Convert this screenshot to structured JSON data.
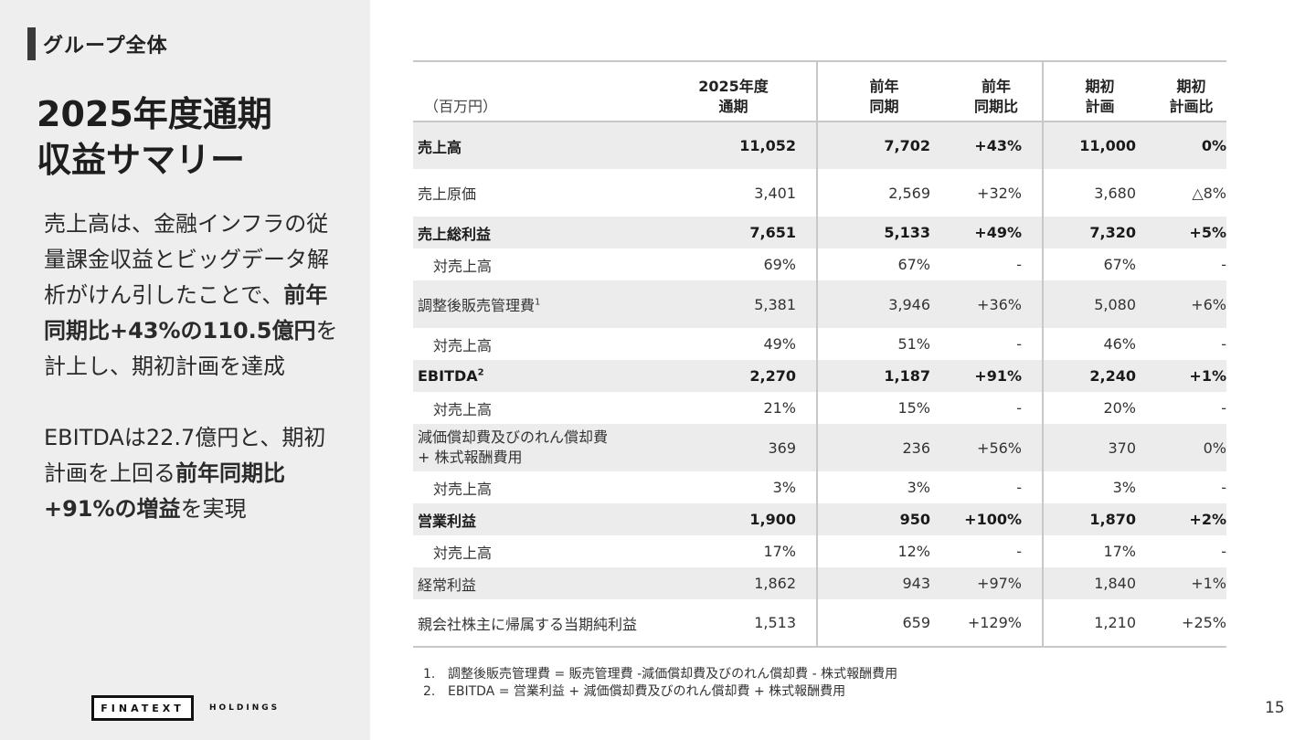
{
  "section_label": "グループ全体",
  "title": {
    "line1": "2025年度通期",
    "line2": "収益サマリー"
  },
  "summary": {
    "p1": {
      "t1": "売上高は、金融インフラの従量課金収益とビッグデータ解析がけん引したことで、",
      "b1": "前年同期比+43%の110.5億円",
      "t2": "を計上し、期初計画を達成"
    },
    "p2": {
      "t1": "EBITDAは22.7億円と、期初計画を上回る",
      "b1": "前年同期比+91%の増益",
      "t2": "を実現"
    }
  },
  "table": {
    "unit": "（百万円）",
    "headers": {
      "cur_l1": "2025年度",
      "cur_l2": "通期",
      "prev_l1": "前年",
      "prev_l2": "同期",
      "yoy_l1": "前年",
      "yoy_l2": "同期比",
      "plan_l1": "期初",
      "plan_l2": "計画",
      "vsplan_l1": "期初",
      "vsplan_l2": "計画比"
    },
    "rows": [
      {
        "item": "売上高",
        "sup": "",
        "cur": "11,052",
        "prev": "7,702",
        "yoy": "+43%",
        "plan": "11,000",
        "vsplan": "0%"
      },
      {
        "item": "売上原価",
        "sup": "",
        "cur": "3,401",
        "prev": "2,569",
        "yoy": "+32%",
        "plan": "3,680",
        "vsplan": "△8%"
      },
      {
        "item": "売上総利益",
        "sup": "",
        "cur": "7,651",
        "prev": "5,133",
        "yoy": "+49%",
        "plan": "7,320",
        "vsplan": "+5%"
      },
      {
        "item": "対売上高",
        "sup": "",
        "cur": "69%",
        "prev": "67%",
        "yoy": "-",
        "plan": "67%",
        "vsplan": "-"
      },
      {
        "item": "調整後販売管理費",
        "sup": "1",
        "cur": "5,381",
        "prev": "3,946",
        "yoy": "+36%",
        "plan": "5,080",
        "vsplan": "+6%"
      },
      {
        "item": "対売上高",
        "sup": "",
        "cur": "49%",
        "prev": "51%",
        "yoy": "-",
        "plan": "46%",
        "vsplan": "-"
      },
      {
        "item": "EBITDA",
        "sup": "2",
        "cur": "2,270",
        "prev": "1,187",
        "yoy": "+91%",
        "plan": "2,240",
        "vsplan": "+1%"
      },
      {
        "item": "対売上高",
        "sup": "",
        "cur": "21%",
        "prev": "15%",
        "yoy": "-",
        "plan": "20%",
        "vsplan": "-"
      },
      {
        "item": "減価償却費及びのれん償却費",
        "item2": "+ 株式報酬費用",
        "sup": "",
        "cur": "369",
        "prev": "236",
        "yoy": "+56%",
        "plan": "370",
        "vsplan": "0%"
      },
      {
        "item": "対売上高",
        "sup": "",
        "cur": "3%",
        "prev": "3%",
        "yoy": "-",
        "plan": "3%",
        "vsplan": "-"
      },
      {
        "item": "営業利益",
        "sup": "",
        "cur": "1,900",
        "prev": "950",
        "yoy": "+100%",
        "plan": "1,870",
        "vsplan": "+2%"
      },
      {
        "item": "対売上高",
        "sup": "",
        "cur": "17%",
        "prev": "12%",
        "yoy": "-",
        "plan": "17%",
        "vsplan": "-"
      },
      {
        "item": "経常利益",
        "sup": "",
        "cur": "1,862",
        "prev": "943",
        "yoy": "+97%",
        "plan": "1,840",
        "vsplan": "+1%"
      },
      {
        "item": "親会社株主に帰属する当期純利益",
        "sup": "",
        "cur": "1,513",
        "prev": "659",
        "yoy": "+129%",
        "plan": "1,210",
        "vsplan": "+25%"
      }
    ]
  },
  "footnotes": [
    {
      "num": "1.",
      "text": "調整後販売管理費 = 販売管理費 -減価償却費及びのれん償却費 - 株式報酬費用"
    },
    {
      "num": "2.",
      "text": "EBITDA = 営業利益 + 減価償却費及びのれん償却費 + 株式報酬費用"
    }
  ],
  "logo": {
    "brand": "FINATEXT",
    "sub": "HOLDINGS"
  },
  "page_number": "15"
}
